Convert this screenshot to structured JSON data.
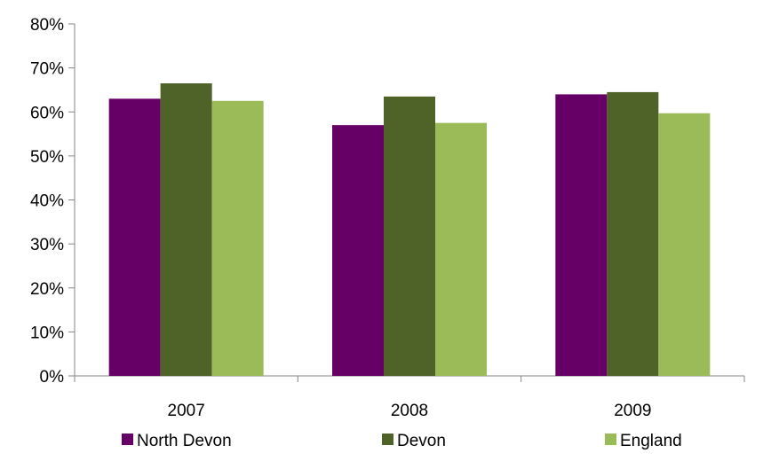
{
  "chart_data": {
    "type": "bar",
    "categories": [
      "2007",
      "2008",
      "2009"
    ],
    "series": [
      {
        "name": "North Devon",
        "values": [
          63,
          57,
          64
        ],
        "color": "#660066"
      },
      {
        "name": "Devon",
        "values": [
          66.5,
          63.5,
          64.5
        ],
        "color": "#4f6228"
      },
      {
        "name": "England",
        "values": [
          62.5,
          57.5,
          59.7
        ],
        "color": "#9bbb59"
      }
    ],
    "ylim": [
      0,
      80
    ],
    "yticks": [
      "0%",
      "10%",
      "20%",
      "30%",
      "40%",
      "50%",
      "60%",
      "70%",
      "80%"
    ],
    "ytick_values": [
      0,
      10,
      20,
      30,
      40,
      50,
      60,
      70,
      80
    ],
    "grid": false,
    "legend": "bottom",
    "title": "",
    "xlabel": "",
    "ylabel": ""
  }
}
